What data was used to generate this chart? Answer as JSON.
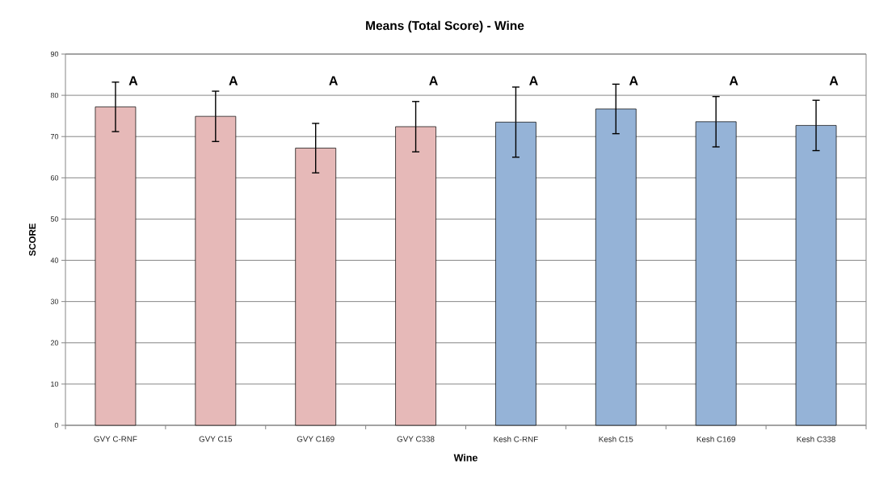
{
  "chart_data": {
    "type": "bar",
    "title": "Means (Total Score) - Wine",
    "xlabel": "Wine",
    "ylabel": "SCORE",
    "categories": [
      "GVY C-RNF",
      "GVY C15",
      "GVY C169",
      "GVY C338",
      "Kesh C-RNF",
      "Kesh C15",
      "Kesh C169",
      "Kesh C338"
    ],
    "values": [
      77.2,
      74.9,
      67.2,
      72.4,
      73.5,
      76.7,
      73.6,
      72.7
    ],
    "errors": [
      6.0,
      6.1,
      6.0,
      6.1,
      8.5,
      6.0,
      6.1,
      6.1
    ],
    "colors": [
      "#e6b9b8",
      "#e6b9b8",
      "#e6b9b8",
      "#e6b9b8",
      "#95b3d7",
      "#95b3d7",
      "#95b3d7",
      "#95b3d7"
    ],
    "ylim": [
      0,
      90
    ],
    "yticks": [
      0,
      10,
      20,
      30,
      40,
      50,
      60,
      70,
      80,
      90
    ],
    "grid": "y",
    "annotations": [
      "A",
      "A",
      "A",
      "A",
      "A",
      "A",
      "A",
      "A"
    ]
  }
}
